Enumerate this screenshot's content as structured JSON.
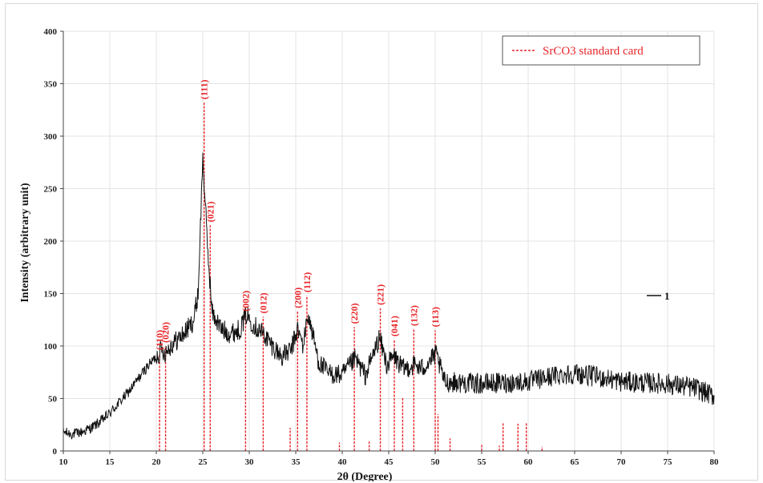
{
  "chart_data": {
    "type": "line",
    "title": "",
    "xlabel": "2θ (Degree)",
    "ylabel": "Intensity (arbitrary unit)",
    "xlim": [
      10,
      80
    ],
    "ylim": [
      0,
      400
    ],
    "x_ticks": [
      10,
      15,
      20,
      25,
      30,
      35,
      40,
      45,
      50,
      55,
      60,
      65,
      70,
      75,
      80
    ],
    "y_ticks": [
      0,
      50,
      100,
      150,
      200,
      250,
      300,
      350,
      400
    ],
    "grid": true,
    "colors": {
      "pattern": "#111111",
      "standard": "#e8262a",
      "grid": "#e3e3e3"
    },
    "series": [
      {
        "name": "1",
        "anchors": [
          [
            10,
            18
          ],
          [
            11,
            16
          ],
          [
            12,
            18
          ],
          [
            13,
            22
          ],
          [
            14,
            28
          ],
          [
            15,
            36
          ],
          [
            16,
            46
          ],
          [
            17,
            56
          ],
          [
            18,
            68
          ],
          [
            19,
            80
          ],
          [
            20,
            90
          ],
          [
            20.5,
            96
          ],
          [
            21,
            94
          ],
          [
            21.5,
            100
          ],
          [
            22,
            104
          ],
          [
            23,
            112
          ],
          [
            24,
            124
          ],
          [
            24.5,
            150
          ],
          [
            25.0,
            280
          ],
          [
            25.5,
            196
          ],
          [
            26,
            132
          ],
          [
            27,
            116
          ],
          [
            28,
            112
          ],
          [
            29,
            116
          ],
          [
            29.7,
            130
          ],
          [
            30.5,
            120
          ],
          [
            31.5,
            112
          ],
          [
            32.5,
            100
          ],
          [
            33.5,
            90
          ],
          [
            34.5,
            96
          ],
          [
            35.2,
            116
          ],
          [
            35.8,
            100
          ],
          [
            36.3,
            130
          ],
          [
            36.8,
            112
          ],
          [
            37.5,
            84
          ],
          [
            38.5,
            74
          ],
          [
            40,
            72
          ],
          [
            41.4,
            88
          ],
          [
            42.5,
            72
          ],
          [
            44.0,
            108
          ],
          [
            44.8,
            82
          ],
          [
            45.6,
            90
          ],
          [
            46.5,
            78
          ],
          [
            47.8,
            82
          ],
          [
            48.5,
            78
          ],
          [
            50.1,
            92
          ],
          [
            51,
            66
          ],
          [
            55,
            64
          ],
          [
            60,
            66
          ],
          [
            63,
            72
          ],
          [
            65,
            74
          ],
          [
            68,
            70
          ],
          [
            70,
            66
          ],
          [
            75,
            64
          ],
          [
            78,
            60
          ],
          [
            80,
            52
          ]
        ],
        "noise": 10
      }
    ],
    "legend": {
      "entries": [
        "SrCO3  standard card"
      ],
      "placement": "top-right"
    },
    "standard_card": [
      {
        "x": 20.35,
        "y": 93,
        "label": "(110)"
      },
      {
        "x": 21.0,
        "y": 100,
        "label": "(020)"
      },
      {
        "x": 25.15,
        "y": 332,
        "label": "(111)"
      },
      {
        "x": 25.8,
        "y": 215,
        "label": "(021)"
      },
      {
        "x": 29.6,
        "y": 130,
        "label": "(002)"
      },
      {
        "x": 31.5,
        "y": 128,
        "label": "(012)"
      },
      {
        "x": 34.4,
        "y": 22,
        "label": ""
      },
      {
        "x": 35.2,
        "y": 133,
        "label": "(200)"
      },
      {
        "x": 36.2,
        "y": 148,
        "label": "(112)"
      },
      {
        "x": 39.7,
        "y": 8,
        "label": ""
      },
      {
        "x": 41.3,
        "y": 118,
        "label": "(220)"
      },
      {
        "x": 42.9,
        "y": 9,
        "label": ""
      },
      {
        "x": 44.1,
        "y": 136,
        "label": "(221)"
      },
      {
        "x": 45.6,
        "y": 106,
        "label": "(041)"
      },
      {
        "x": 46.5,
        "y": 51,
        "label": ""
      },
      {
        "x": 47.7,
        "y": 116,
        "label": "(132)"
      },
      {
        "x": 50.0,
        "y": 115,
        "label": "(113)"
      },
      {
        "x": 50.3,
        "y": 35,
        "label": ""
      },
      {
        "x": 51.6,
        "y": 12,
        "label": ""
      },
      {
        "x": 55.0,
        "y": 6,
        "label": ""
      },
      {
        "x": 56.9,
        "y": 5,
        "label": ""
      },
      {
        "x": 57.3,
        "y": 27,
        "label": ""
      },
      {
        "x": 58.9,
        "y": 26,
        "label": ""
      },
      {
        "x": 59.8,
        "y": 27,
        "label": ""
      },
      {
        "x": 61.5,
        "y": 4,
        "label": ""
      }
    ]
  }
}
